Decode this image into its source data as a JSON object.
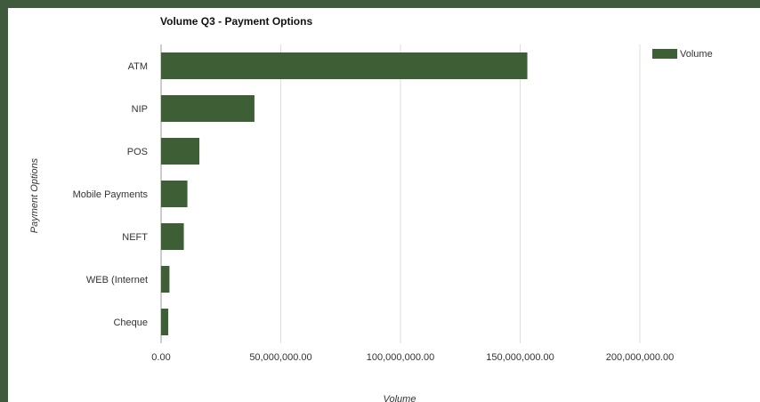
{
  "chart_data": {
    "type": "bar",
    "orientation": "horizontal",
    "title": "Volume Q3 - Payment Options",
    "xlabel": "Volume",
    "ylabel": "Payment Options",
    "categories": [
      "ATM",
      "NIP",
      "POS",
      "Mobile Payments",
      "NEFT",
      "WEB (Internet)",
      "Cheque"
    ],
    "category_labels": [
      "ATM",
      "NIP",
      "POS",
      "Mobile Payments",
      "NEFT",
      "WEB (Internet",
      "Cheque"
    ],
    "series": [
      {
        "name": "Volume",
        "values": [
          153000000,
          39000000,
          16000000,
          11000000,
          9500000,
          3500000,
          3000000
        ]
      }
    ],
    "xlim": [
      0,
      200000000
    ],
    "x_ticks": [
      0,
      50000000,
      100000000,
      150000000,
      200000000
    ],
    "x_tick_labels": [
      "0.00",
      "50,000,000.00",
      "100,000,000.00",
      "150,000,000.00",
      "200,000,000.00"
    ],
    "grid": true,
    "legend_position": "top-right",
    "colors": {
      "bar": "#3e5e36",
      "frame": "#3f5a3c",
      "grid": "#dddddd"
    }
  }
}
